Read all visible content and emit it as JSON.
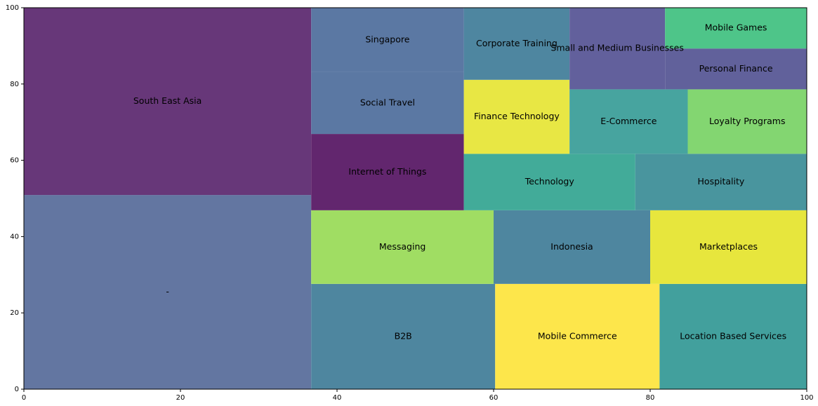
{
  "chart_data": {
    "type": "treemap",
    "xlim": [
      0,
      100
    ],
    "ylim": [
      0,
      100
    ],
    "xticks": [
      "0",
      "20",
      "40",
      "60",
      "80",
      "100"
    ],
    "yticks": [
      "0",
      "20",
      "40",
      "60",
      "80",
      "100"
    ],
    "grid": false,
    "rects": [
      {
        "label": "-",
        "x": 0,
        "y": 0,
        "w": 36.7,
        "h": 50.9,
        "color": "#5b6f9c"
      },
      {
        "label": "South East Asia",
        "x": 0,
        "y": 50.9,
        "w": 36.7,
        "h": 49.1,
        "color": "#5f2c72"
      },
      {
        "label": "B2B",
        "x": 36.7,
        "y": 0,
        "w": 23.5,
        "h": 27.6,
        "color": "#44809a"
      },
      {
        "label": "Messaging",
        "x": 36.7,
        "y": 27.6,
        "w": 23.3,
        "h": 19.3,
        "color": "#9bdb5b"
      },
      {
        "label": "Internet of Things",
        "x": 36.7,
        "y": 46.9,
        "w": 19.5,
        "h": 20.0,
        "color": "#5a1a66"
      },
      {
        "label": "Social Travel",
        "x": 36.7,
        "y": 66.9,
        "w": 19.5,
        "h": 16.2,
        "color": "#52719e"
      },
      {
        "label": "Singapore",
        "x": 36.7,
        "y": 83.1,
        "w": 19.5,
        "h": 16.9,
        "color": "#52719e"
      },
      {
        "label": "Mobile Commerce",
        "x": 60.2,
        "y": 0,
        "w": 21.0,
        "h": 27.6,
        "color": "#fde541"
      },
      {
        "label": "Location Based Services",
        "x": 81.2,
        "y": 0,
        "w": 18.8,
        "h": 27.6,
        "color": "#389b98"
      },
      {
        "label": "Indonesia",
        "x": 60.0,
        "y": 27.6,
        "w": 20.0,
        "h": 19.3,
        "color": "#44809a"
      },
      {
        "label": "Marketplaces",
        "x": 80.0,
        "y": 27.6,
        "w": 20.0,
        "h": 19.3,
        "color": "#e6e533"
      },
      {
        "label": "Technology",
        "x": 56.2,
        "y": 46.9,
        "w": 21.9,
        "h": 14.8,
        "color": "#38a694"
      },
      {
        "label": "Hospitality",
        "x": 78.1,
        "y": 46.9,
        "w": 21.9,
        "h": 14.8,
        "color": "#3f8f99"
      },
      {
        "label": "Finance Technology",
        "x": 56.2,
        "y": 61.7,
        "w": 13.5,
        "h": 19.4,
        "color": "#e7e63a"
      },
      {
        "label": "E-Commerce",
        "x": 69.7,
        "y": 61.7,
        "w": 15.1,
        "h": 16.9,
        "color": "#3d9f9a"
      },
      {
        "label": "Loyalty Programs",
        "x": 84.8,
        "y": 61.7,
        "w": 15.2,
        "h": 16.9,
        "color": "#7cd469"
      },
      {
        "label": "Corporate Training",
        "x": 56.2,
        "y": 81.1,
        "w": 13.5,
        "h": 18.9,
        "color": "#447f9b"
      },
      {
        "label": "Small and Medium Businesses",
        "x": 69.7,
        "y": 78.6,
        "w": 12.2,
        "h": 21.4,
        "color": "#5a5797"
      },
      {
        "label": "Personal Finance",
        "x": 81.9,
        "y": 78.6,
        "w": 18.1,
        "h": 10.7,
        "color": "#595896"
      },
      {
        "label": "Mobile Games",
        "x": 81.9,
        "y": 89.3,
        "w": 18.1,
        "h": 10.7,
        "color": "#45c283"
      }
    ]
  }
}
